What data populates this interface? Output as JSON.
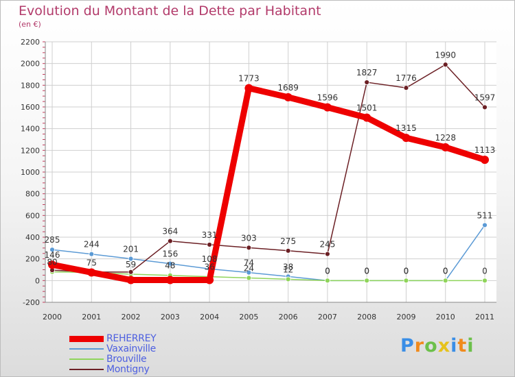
{
  "chart_data": {
    "type": "line",
    "title": "Evolution du Montant de la Dette par Habitant",
    "subtitle": "(en €)",
    "xlabel": "",
    "ylabel": "",
    "ylim": [
      -200,
      2200
    ],
    "yticks": [
      -200,
      0,
      200,
      400,
      600,
      800,
      1000,
      1200,
      1400,
      1600,
      1800,
      2000,
      2200
    ],
    "grid": true,
    "x": [
      "2000",
      "2001",
      "2002",
      "2003",
      "2004",
      "2005",
      "2006",
      "2007",
      "2008",
      "2009",
      "2010",
      "2011"
    ],
    "legend_position": "bottom-left",
    "series": [
      {
        "name": "Vaxainville",
        "color": "#5b9ad5",
        "values": [
          285,
          244,
          201,
          156,
          108,
          74,
          38,
          0,
          0,
          0,
          0,
          511
        ],
        "labels": [
          "285",
          "244",
          "201",
          "156",
          "108",
          "74",
          "38",
          "0",
          "0",
          "0",
          "0",
          "511"
        ]
      },
      {
        "name": "Brouville",
        "color": "#8fd45a",
        "values": [
          80,
          75,
          59,
          48,
          36,
          24,
          12,
          0,
          0,
          0,
          0,
          0
        ],
        "labels": [
          "80",
          "75",
          "59",
          "48",
          "36",
          "24",
          "12",
          "0",
          "0",
          "0",
          "0",
          "0"
        ]
      },
      {
        "name": "Montigny",
        "color": "#6b1f24",
        "values": [
          96,
          79,
          79,
          364,
          331,
          303,
          275,
          245,
          1827,
          1776,
          1990,
          1597
        ],
        "labels": [
          "",
          "",
          "",
          "364",
          "331",
          "303",
          "275",
          "245",
          "1827",
          "1776",
          "1990",
          "1597"
        ]
      },
      {
        "name": "REHERREY",
        "color": "#ee0000",
        "values": [
          146,
          75,
          5,
          5,
          5,
          1773,
          1689,
          1596,
          1501,
          1315,
          1228,
          1113
        ],
        "labels": [
          "146",
          "",
          "",
          "",
          "",
          "1773",
          "1689",
          "1596",
          "1501",
          "1315",
          "1228",
          "1113"
        ]
      }
    ]
  },
  "legend": [
    {
      "name": "REHERREY",
      "color": "#ee0000",
      "thickness": 9
    },
    {
      "name": "Vaxainville",
      "color": "#5b9ad5",
      "thickness": 2
    },
    {
      "name": "Brouville",
      "color": "#8fd45a",
      "thickness": 2
    },
    {
      "name": "Montigny",
      "color": "#6b1f24",
      "thickness": 2
    }
  ],
  "brand": {
    "letters": [
      "P",
      "r",
      "o",
      "x",
      "i",
      "t",
      "i"
    ],
    "colors": [
      "#3a8ee6",
      "#f08a1c",
      "#6cc04a",
      "#e6c21c",
      "#3a8ee6",
      "#f08a1c",
      "#6cc04a"
    ]
  }
}
